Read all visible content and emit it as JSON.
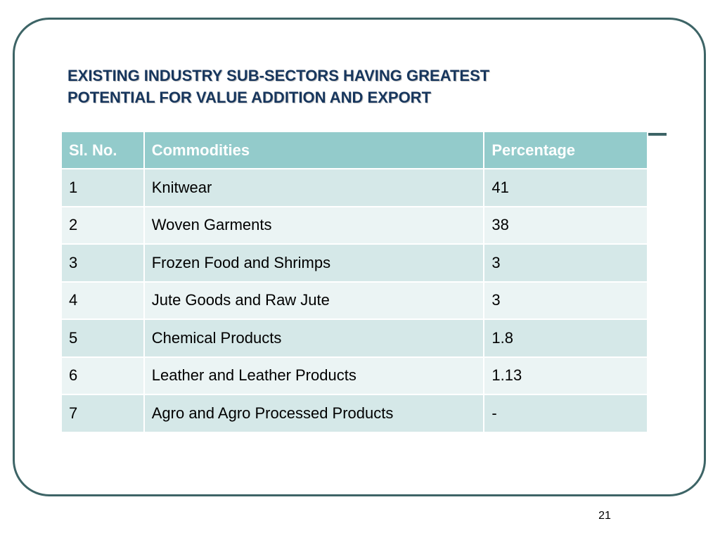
{
  "slide": {
    "title_line1": "EXISTING INDUSTRY SUB-SECTORS HAVING GREATEST",
    "title_line2": "POTENTIAL FOR VALUE ADDITION AND EXPORT",
    "page_number": "21"
  },
  "table": {
    "headers": [
      "Sl. No.",
      "Commodities",
      "Percentage"
    ],
    "rows": [
      {
        "sl": "1",
        "commodity": "Knitwear",
        "percentage": "41"
      },
      {
        "sl": "2",
        "commodity": "Woven Garments",
        "percentage": "38"
      },
      {
        "sl": "3",
        "commodity": "Frozen Food and Shrimps",
        "percentage": "3"
      },
      {
        "sl": "4",
        "commodity": "Jute Goods and Raw Jute",
        "percentage": "3"
      },
      {
        "sl": "5",
        "commodity": "Chemical Products",
        "percentage": "1.8"
      },
      {
        "sl": "6",
        "commodity": "Leather and Leather Products",
        "percentage": "1.13"
      },
      {
        "sl": "7",
        "commodity": "Agro and Agro Processed Products",
        "percentage": "-"
      }
    ]
  },
  "colors": {
    "title": "#17365d",
    "frame": "#3d6466",
    "header_bg": "#93cbcb",
    "row_odd_bg": "#d5e8e8",
    "row_even_bg": "#ebf4f4"
  }
}
